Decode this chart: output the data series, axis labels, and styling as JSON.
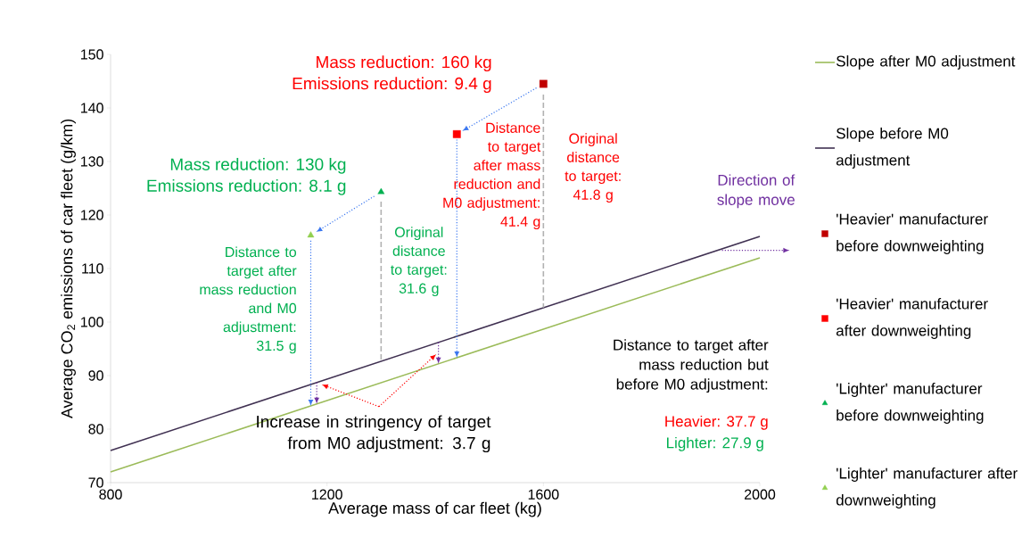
{
  "chart_data": {
    "type": "line",
    "xlabel": "Average mass of car fleet (kg)",
    "ylabel": "Average CO$_{2}$ emissions of car fleet (g/km)",
    "xlim": [
      800,
      2000
    ],
    "ylim": [
      70,
      150
    ],
    "xticks": [
      800,
      1200,
      1600,
      2000
    ],
    "yticks": [
      70,
      80,
      90,
      100,
      110,
      120,
      130,
      140,
      150
    ],
    "grid": false,
    "legend": "right",
    "series": [
      {
        "name": "Slope after M0 adjustment",
        "color": "#9bbb59",
        "x": [
          800,
          2000
        ],
        "values": [
          72,
          112
        ]
      },
      {
        "name": "Slope before M0 adjustment",
        "color": "#403152",
        "x": [
          800,
          2000
        ],
        "values": [
          76,
          116
        ]
      },
      {
        "name": "'Heavier' manufacturer before downweighting",
        "type": "scatter",
        "marker": "square",
        "color": "#c00000",
        "x": [
          1600
        ],
        "values": [
          144.5
        ]
      },
      {
        "name": "'Heavier' manufacturer after downweighting",
        "type": "scatter",
        "marker": "square",
        "color": "#ff0000",
        "x": [
          1440
        ],
        "values": [
          135.1
        ]
      },
      {
        "name": "'Lighter' manufacturer before downweighting",
        "type": "scatter",
        "marker": "triangle",
        "color": "#00b050",
        "x": [
          1300
        ],
        "values": [
          124.3
        ]
      },
      {
        "name": "'Lighter' manufacturer after downweighting",
        "type": "scatter",
        "marker": "triangle",
        "color": "#92d050",
        "x": [
          1170
        ],
        "values": [
          116.2
        ]
      },
      {
        "type": "line",
        "line_style": "dashed",
        "color": "#b2b2b2",
        "x": [
          1600,
          1600
        ],
        "values": [
          142.5,
          102.7
        ]
      },
      {
        "type": "line",
        "line_style": "dashed",
        "color": "#b2b2b2",
        "x": [
          1300,
          1300
        ],
        "values": [
          122.5,
          92.7
        ]
      }
    ],
    "annotations": [
      "Mass reduction: 160 kg",
      "Emissions reduction: 9.4 g",
      "Mass reduction: 130 kg",
      "Emissions reduction: 8.1 g",
      "Distance to target after mass reduction and M0 adjustment: 31.5 g",
      "Original distance to target: 31.6 g",
      "Distance to target after mass reduction and M0 adjustment: 41.4 g",
      "Original distance to target: 41.8 g",
      "Direction of slope move",
      {
        "text": "Increase in stringency of target from M0 adjustment: 3.7 g",
        "x": 1181,
        "y": 88.7
      },
      "Distance to target after mass reduction but before M0 adjustment:",
      "Heavier: 37.7 g",
      "Lighter: 27.9 g"
    ]
  }
}
